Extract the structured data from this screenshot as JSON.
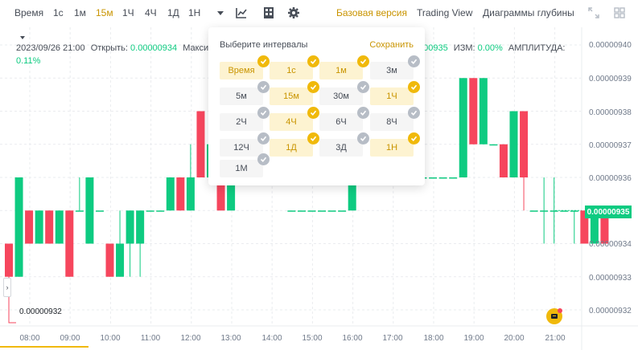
{
  "toolbar": {
    "time_label": "Время",
    "intervals": [
      "1с",
      "1м",
      "15м",
      "1Ч",
      "4Ч",
      "1Д",
      "1Н"
    ],
    "active_interval": "15м",
    "views": [
      "Базовая версия",
      "Trading View",
      "Диаграммы глубины"
    ],
    "active_view": "Базовая версия",
    "icons": [
      "chevron-down-icon",
      "indicators-icon",
      "layout-icon",
      "gear-icon",
      "fullscreen-icon",
      "grid-icon"
    ]
  },
  "info": {
    "datetime": "2023/09/26 21:00",
    "open_label": "Открыть:",
    "open_value": "0.00000934",
    "max_label": "Максим",
    "close_partial": "000935",
    "change_label": "ИЗМ:",
    "change_value": "0.00%",
    "amplitude_label": "АМПЛИТУДА:",
    "amplitude_value": "0.11%"
  },
  "popup": {
    "title": "Выберите интервалы",
    "save_label": "Сохранить",
    "options": [
      {
        "label": "Время",
        "selected": true
      },
      {
        "label": "1с",
        "selected": true
      },
      {
        "label": "1м",
        "selected": true
      },
      {
        "label": "3м",
        "selected": false
      },
      {
        "label": "5м",
        "selected": false
      },
      {
        "label": "15м",
        "selected": true
      },
      {
        "label": "30м",
        "selected": false
      },
      {
        "label": "1Ч",
        "selected": true
      },
      {
        "label": "2Ч",
        "selected": false
      },
      {
        "label": "4Ч",
        "selected": true
      },
      {
        "label": "6Ч",
        "selected": false
      },
      {
        "label": "8Ч",
        "selected": false
      },
      {
        "label": "12Ч",
        "selected": false
      },
      {
        "label": "1Д",
        "selected": true
      },
      {
        "label": "3Д",
        "selected": false
      },
      {
        "label": "1Н",
        "selected": true
      },
      {
        "label": "1М",
        "selected": false
      }
    ]
  },
  "price_axis": {
    "labels": [
      "0.00000940",
      "0.00000939",
      "0.00000938",
      "0.00000937",
      "0.00000936",
      "0.00000934",
      "0.00000933",
      "0.00000932"
    ],
    "current_price": "0.00000935",
    "low_marker": "0.00000932"
  },
  "time_axis": {
    "labels": [
      "08:00",
      "09:00",
      "10:00",
      "11:00",
      "12:00",
      "13:00",
      "14:00",
      "15:00",
      "16:00",
      "17:00",
      "18:00",
      "19:00",
      "20:00",
      "21:00"
    ]
  },
  "colors": {
    "up": "#0ecb81",
    "down": "#f6465d",
    "accent": "#c99400",
    "brand": "#f0b90b"
  },
  "chart_data": {
    "type": "candlestick",
    "note_units": "price in 1e-8",
    "candles": [
      {
        "o": 934.0,
        "c": 933.0,
        "h": 934.0,
        "l": 932.0
      },
      {
        "o": 933.0,
        "c": 936.0,
        "h": 936.0,
        "l": 933.0
      },
      {
        "o": 935.0,
        "c": 934.0,
        "h": 935.0,
        "l": 934.0
      },
      {
        "o": 934.0,
        "c": 935.0,
        "h": 935.0,
        "l": 934.0
      },
      {
        "o": 935.0,
        "c": 934.0,
        "h": 935.0,
        "l": 934.0
      },
      {
        "o": 934.0,
        "c": 935.0,
        "h": 935.0,
        "l": 934.0
      },
      {
        "o": 935.0,
        "c": 933.0,
        "h": 935.0,
        "l": 933.0
      },
      {
        "o": 935.0,
        "c": 935.0,
        "h": 936.0,
        "l": 935.0
      },
      {
        "o": 934.0,
        "c": 936.0,
        "h": 936.0,
        "l": 934.0
      },
      {
        "o": 935.0,
        "c": 935.0,
        "h": 935.0,
        "l": 935.0
      },
      {
        "o": 934.0,
        "c": 933.0,
        "h": 934.0,
        "l": 933.0
      },
      {
        "o": 933.0,
        "c": 934.0,
        "h": 935.0,
        "l": 933.0
      },
      {
        "o": 934.0,
        "c": 935.0,
        "h": 935.0,
        "l": 933.0
      },
      {
        "o": 934.0,
        "c": 935.0,
        "h": 935.0,
        "l": 933.0
      },
      {
        "o": 935.0,
        "c": 935.0,
        "h": 935.0,
        "l": 935.0
      },
      {
        "o": 935.0,
        "c": 935.0,
        "h": 935.0,
        "l": 935.0
      },
      {
        "o": 935.0,
        "c": 936.0,
        "h": 936.0,
        "l": 935.0
      },
      {
        "o": 936.0,
        "c": 935.0,
        "h": 936.0,
        "l": 935.0
      },
      {
        "o": 935.0,
        "c": 936.0,
        "h": 937.0,
        "l": 935.0
      },
      {
        "o": 938.0,
        "c": 936.0,
        "h": 938.0,
        "l": 936.0
      },
      {
        "o": 936.0,
        "c": 937.0,
        "h": 937.0,
        "l": 936.0
      },
      {
        "o": 937.0,
        "c": 935.0,
        "h": 937.0,
        "l": 935.0
      },
      {
        "o": 935.0,
        "c": 936.0,
        "h": 937.0,
        "l": 935.0
      },
      {
        "o": 936.0,
        "c": 937.0,
        "h": 937.0,
        "l": 936.0
      },
      {
        "o": 937.0,
        "c": 936.0,
        "h": 937.0,
        "l": 936.0
      },
      {
        "o": 936.0,
        "c": 936.0,
        "h": 936.0,
        "l": 936.0
      },
      {
        "o": 936.0,
        "c": 936.0,
        "h": 936.0,
        "l": 936.0
      },
      {
        "o": 936.0,
        "c": 936.0,
        "h": 936.0,
        "l": 936.0
      },
      {
        "o": 935.0,
        "c": 935.0,
        "h": 935.0,
        "l": 935.0
      },
      {
        "o": 935.0,
        "c": 935.0,
        "h": 935.0,
        "l": 935.0
      },
      {
        "o": 935.0,
        "c": 935.0,
        "h": 935.0,
        "l": 935.0
      },
      {
        "o": 935.0,
        "c": 935.0,
        "h": 935.0,
        "l": 935.0
      },
      {
        "o": 935.0,
        "c": 935.0,
        "h": 935.0,
        "l": 935.0
      },
      {
        "o": 935.0,
        "c": 935.0,
        "h": 935.0,
        "l": 935.0
      },
      {
        "o": 935.0,
        "c": 936.0,
        "h": 936.0,
        "l": 935.0
      },
      {
        "o": 936.0,
        "c": 936.0,
        "h": 936.0,
        "l": 936.0
      },
      {
        "o": 936.0,
        "c": 936.0,
        "h": 936.0,
        "l": 936.0
      },
      {
        "o": 936.0,
        "c": 936.0,
        "h": 936.0,
        "l": 936.0
      },
      {
        "o": 936.0,
        "c": 936.0,
        "h": 936.0,
        "l": 936.0
      },
      {
        "o": 936.0,
        "c": 936.0,
        "h": 936.0,
        "l": 936.0
      },
      {
        "o": 936.0,
        "c": 936.0,
        "h": 936.0,
        "l": 936.0
      },
      {
        "o": 936.0,
        "c": 936.0,
        "h": 936.0,
        "l": 936.0
      },
      {
        "o": 936.0,
        "c": 936.0,
        "h": 936.0,
        "l": 936.0
      },
      {
        "o": 936.0,
        "c": 936.0,
        "h": 936.0,
        "l": 936.0
      },
      {
        "o": 936.0,
        "c": 936.0,
        "h": 936.0,
        "l": 936.0
      },
      {
        "o": 936.0,
        "c": 939.0,
        "h": 939.0,
        "l": 936.0
      },
      {
        "o": 939.0,
        "c": 937.0,
        "h": 939.0,
        "l": 937.0
      },
      {
        "o": 937.0,
        "c": 939.0,
        "h": 939.0,
        "l": 937.0
      },
      {
        "o": 937.0,
        "c": 937.0,
        "h": 937.0,
        "l": 937.0
      },
      {
        "o": 937.0,
        "c": 936.0,
        "h": 937.0,
        "l": 936.0
      },
      {
        "o": 936.0,
        "c": 938.0,
        "h": 938.0,
        "l": 936.0
      },
      {
        "o": 938.0,
        "c": 936.0,
        "h": 938.0,
        "l": 935.0
      },
      {
        "o": 935.0,
        "c": 935.0,
        "h": 935.0,
        "l": 935.0
      },
      {
        "o": 935.0,
        "c": 935.0,
        "h": 936.0,
        "l": 934.0
      },
      {
        "o": 935.0,
        "c": 935.0,
        "h": 936.0,
        "l": 934.0
      },
      {
        "o": 935.0,
        "c": 935.0,
        "h": 935.0,
        "l": 935.0
      },
      {
        "o": 935.0,
        "c": 935.0,
        "h": 935.0,
        "l": 934.0
      },
      {
        "o": 935.0,
        "c": 934.0,
        "h": 935.0,
        "l": 934.0
      },
      {
        "o": 934.0,
        "c": 935.0,
        "h": 935.0,
        "l": 934.0
      },
      {
        "o": 935.0,
        "c": 934.0,
        "h": 935.0,
        "l": 934.0
      }
    ]
  }
}
